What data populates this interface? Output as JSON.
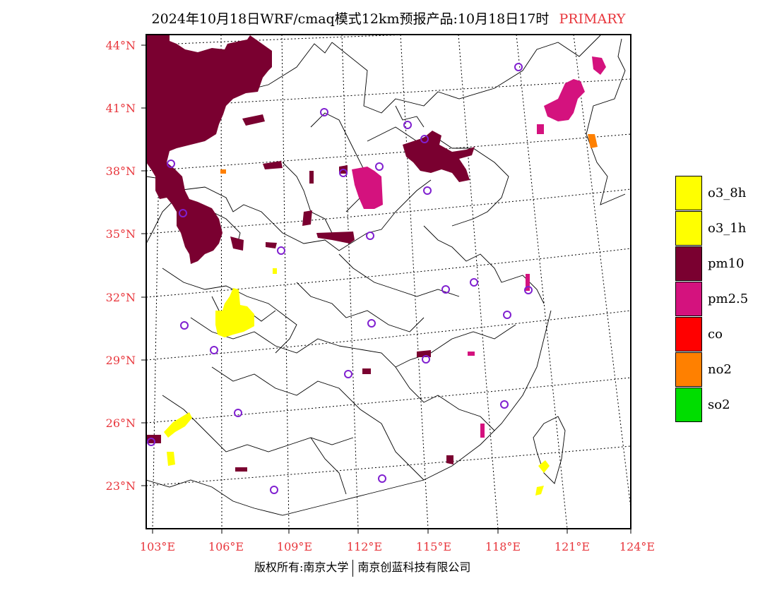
{
  "title": {
    "main": "2024年10月18日WRF/cmaq模式12km预报产品:10月18日17时",
    "tag": "PRIMARY"
  },
  "colors": {
    "label_red": "#e8363c",
    "o3_8h": "#ffff00",
    "o3_1h": "#ffff00",
    "pm10": "#7a0030",
    "pm25": "#d4127e",
    "co": "#ff0000",
    "no2": "#ff8000",
    "so2": "#00dd00",
    "station_circle": "#8020d0"
  },
  "axes": {
    "lat_labels": [
      "44°N",
      "41°N",
      "38°N",
      "35°N",
      "32°N",
      "29°N",
      "26°N",
      "23°N"
    ],
    "lon_labels": [
      "103°E",
      "106°E",
      "109°E",
      "112°E",
      "115°E",
      "118°E",
      "121°E",
      "124°E"
    ]
  },
  "legend": [
    {
      "label": "o3_8h",
      "color": "#ffff00"
    },
    {
      "label": "o3_1h",
      "color": "#ffff00"
    },
    {
      "label": "pm10",
      "color": "#7a0030"
    },
    {
      "label": "pm2.5",
      "color": "#d4127e"
    },
    {
      "label": "co",
      "color": "#ff0000"
    },
    {
      "label": "no2",
      "color": "#ff8000"
    },
    {
      "label": "so2",
      "color": "#00dd00"
    }
  ],
  "footer": {
    "left": "版权所有:南京大学",
    "right": "南京创蓝科技有限公司"
  }
}
